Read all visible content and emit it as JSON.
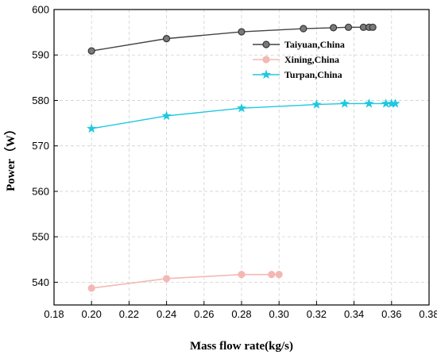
{
  "chart_data": {
    "type": "line",
    "title": "",
    "xlabel": "Mass flow rate(kg/s)",
    "ylabel": "Power（W）",
    "xlim": [
      0.18,
      0.38
    ],
    "ylim": [
      535,
      600
    ],
    "xticks": [
      "0.18",
      "0.20",
      "0.22",
      "0.24",
      "0.26",
      "0.28",
      "0.30",
      "0.32",
      "0.34",
      "0.36",
      "0.38"
    ],
    "yticks": [
      "540",
      "550",
      "560",
      "570",
      "580",
      "590",
      "600"
    ],
    "grid": true,
    "legend_position": "top-right",
    "series": [
      {
        "name": "Taiyuan,China",
        "color": "#444444",
        "marker": "circle",
        "x": [
          0.2,
          0.24,
          0.28,
          0.313,
          0.329,
          0.337,
          0.345,
          0.348,
          0.35
        ],
        "y": [
          590.9,
          593.6,
          595.1,
          595.8,
          596.0,
          596.1,
          596.1,
          596.1,
          596.1
        ]
      },
      {
        "name": "Xining,China",
        "color": "#f4b8b4",
        "marker": "circle",
        "x": [
          0.2,
          0.24,
          0.28,
          0.296,
          0.3
        ],
        "y": [
          538.7,
          540.8,
          541.7,
          541.7,
          541.7
        ]
      },
      {
        "name": "Turpan,China",
        "color": "#1ec8e0",
        "marker": "star",
        "x": [
          0.2,
          0.24,
          0.28,
          0.32,
          0.335,
          0.348,
          0.357,
          0.36,
          0.362
        ],
        "y": [
          573.8,
          576.6,
          578.3,
          579.1,
          579.3,
          579.3,
          579.3,
          579.3,
          579.3
        ]
      }
    ]
  }
}
